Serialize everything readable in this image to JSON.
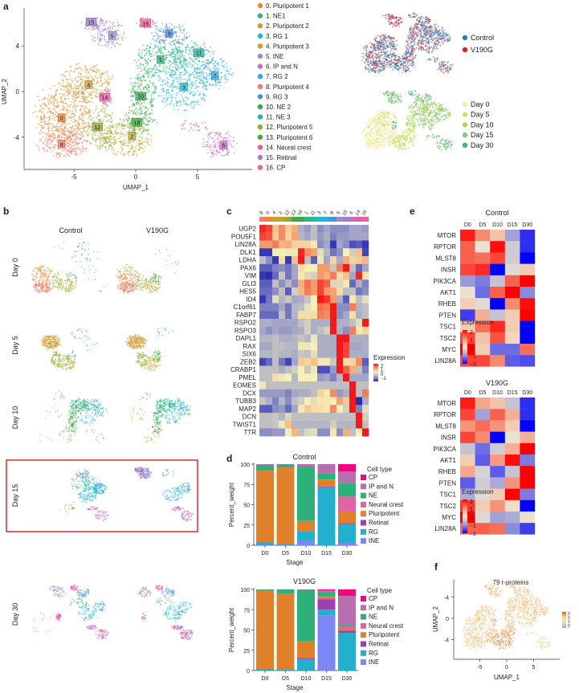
{
  "panels": {
    "a": "a",
    "b": "b",
    "c": "c",
    "d": "d",
    "e": "e",
    "f": "f"
  },
  "chart_data": [
    {
      "type": "scatter",
      "panel": "a",
      "xlabel": "UMAP_1",
      "ylabel": "UMAP_2",
      "xticks": [
        "-5",
        "0",
        "5"
      ],
      "yticks": [
        "4",
        "0",
        "-4"
      ],
      "clusters": [
        {
          "id": "0",
          "label": "0. Pluripotent 1",
          "color": "#e8872c"
        },
        {
          "id": "1",
          "label": "1. NE1",
          "color": "#2fb57a"
        },
        {
          "id": "2",
          "label": "2. Pluripotent 2",
          "color": "#b8a82e"
        },
        {
          "id": "3",
          "label": "3. RG 1",
          "color": "#1bbad6"
        },
        {
          "id": "4",
          "label": "4. Pluripotent 3",
          "color": "#d39a2c"
        },
        {
          "id": "5",
          "label": "5. tNE",
          "color": "#9d8ad2"
        },
        {
          "id": "6",
          "label": "6. IP and N",
          "color": "#c96fbf"
        },
        {
          "id": "7",
          "label": "7. RG 2",
          "color": "#2aa9e6"
        },
        {
          "id": "8",
          "label": "8. Pluripotent 4",
          "color": "#f27a6a"
        },
        {
          "id": "9",
          "label": "9. RG 3",
          "color": "#4a8fd8"
        },
        {
          "id": "10",
          "label": "10. NE 2",
          "color": "#2eae4c"
        },
        {
          "id": "11",
          "label": "11. NE 3",
          "color": "#22b8a6"
        },
        {
          "id": "12",
          "label": "12. Pluripotent 5",
          "color": "#8fae2a"
        },
        {
          "id": "13",
          "label": "13. Pluripotent 6",
          "color": "#3eae3c"
        },
        {
          "id": "14",
          "label": "14. Neural crest",
          "color": "#e85ba8"
        },
        {
          "id": "15",
          "label": "15. Retinal",
          "color": "#a27ad2"
        },
        {
          "id": "16",
          "label": "16. CP",
          "color": "#f0609a"
        }
      ]
    },
    {
      "type": "scatter",
      "panel": "a",
      "legend": [
        {
          "label": "Control",
          "color": "#2a7db8"
        },
        {
          "label": "V190G",
          "color": "#cf252d"
        }
      ]
    },
    {
      "type": "scatter",
      "panel": "a",
      "legend": [
        {
          "label": "Day 0",
          "color": "#f3ee9c"
        },
        {
          "label": "Day 5",
          "color": "#d6e36a"
        },
        {
          "label": "Day 10",
          "color": "#aad66a"
        },
        {
          "label": "Day 15",
          "color": "#86c978"
        },
        {
          "label": "Day 30",
          "color": "#4db36a"
        }
      ]
    },
    {
      "type": "scatter",
      "panel": "b",
      "columns": [
        "Control",
        "V190G"
      ],
      "rows": [
        "Day 0",
        "Day 5",
        "Day 10",
        "Day 15",
        "Day 30"
      ],
      "highlighted_row": "Day 15",
      "highlight_color": "#e8262b"
    },
    {
      "type": "heatmap",
      "panel": "c",
      "columns": [
        "8",
        "0",
        "4",
        "2",
        "12",
        "13",
        "10",
        "1",
        "11",
        "3",
        "7",
        "9",
        "5",
        "15",
        "6",
        "14",
        "16"
      ],
      "rows": [
        "UGP2",
        "POU5F1",
        "LIN28A",
        "DLK1",
        "LDHA",
        "PAX6",
        "VIM",
        "GLI3",
        "HES5",
        "ID4",
        "C1orf61",
        "FABP7",
        "RSPO2",
        "RSPO3",
        "DAPL1",
        "RAX",
        "SIX6",
        "ZEB2",
        "CRABP1",
        "PMEL",
        "EOMES",
        "DCX",
        "TUBB3",
        "MAP2",
        "DCN",
        "TWIST1",
        "TTR"
      ],
      "values": [
        [
          2,
          1.8,
          0.8,
          1.3,
          0.7,
          1,
          -0.5,
          -0.7,
          -0.3,
          -0.8,
          -0.6,
          -0.8,
          -0.8,
          -0.8,
          -0.6,
          -0.6,
          -0.7
        ],
        [
          1.8,
          1.7,
          0.7,
          1.3,
          0.6,
          1.1,
          -0.4,
          -0.6,
          -0.3,
          -0.7,
          -0.5,
          -0.9,
          -0.7,
          -0.7,
          -0.6,
          -0.6,
          -0.6
        ],
        [
          1.2,
          1.2,
          1.4,
          0.9,
          1,
          0.6,
          0.6,
          0.6,
          0.4,
          -0.8,
          -0.6,
          -1.5,
          -0.6,
          -0.8,
          -1.3,
          -1.2,
          -1.5
        ],
        [
          -1.5,
          -1.5,
          0.3,
          0.3,
          0.4,
          0.2,
          2,
          1.3,
          1.1,
          0.1,
          -0.4,
          -1,
          -0.8,
          0.3,
          -0.1,
          0.8,
          -1.4
        ],
        [
          -0.3,
          -0.8,
          -1.5,
          0.5,
          -1.5,
          0.8,
          2.2,
          -0.3,
          -1.2,
          0.2,
          -0.6,
          0.6,
          -0.5,
          1,
          0.6,
          0.7,
          0.9
        ],
        [
          -1.2,
          -1.2,
          -0.9,
          -0.8,
          -1,
          -0.6,
          0.5,
          0.3,
          0.3,
          1.2,
          1.2,
          -0.2,
          1.4,
          2.2,
          -0.3,
          -1.1,
          -0.6
        ],
        [
          -1.5,
          -1.8,
          -1.1,
          -0.2,
          -1,
          -0.6,
          0.4,
          0,
          -0.1,
          1.2,
          1,
          1.4,
          0.5,
          0.8,
          -0.6,
          2,
          0.4
        ],
        [
          -1.2,
          -1.2,
          -0.3,
          -0.8,
          -0.4,
          -0.8,
          1,
          1.5,
          1.2,
          1.8,
          1.6,
          0,
          0,
          0.4,
          -1.1,
          -0.5,
          -0.9
        ],
        [
          -1.1,
          -1.1,
          -0.8,
          -0.3,
          -1.2,
          -0.1,
          0.9,
          1.4,
          1.2,
          1.8,
          1.2,
          1.1,
          0.5,
          -0.3,
          -0.3,
          -1,
          -0.8
        ],
        [
          -1.5,
          -1,
          0.1,
          -0.4,
          -0.2,
          -0.6,
          -0.5,
          -0.2,
          0.3,
          2.1,
          1.9,
          1.2,
          -0.5,
          -1.2,
          0.4,
          -0.3,
          0.1
        ],
        [
          -0.9,
          -0.9,
          -0.9,
          -0.6,
          -1,
          -0.4,
          -0.3,
          0.1,
          0.3,
          1.5,
          1.4,
          2.4,
          -0.8,
          -0.8,
          1.4,
          -0.4,
          -0.3
        ],
        [
          -1.1,
          -1.1,
          -1.1,
          -0.3,
          -1,
          -0.4,
          0.5,
          0.5,
          0.5,
          1.4,
          1.3,
          2.4,
          -0.8,
          -0.6,
          0.5,
          -0.5,
          -0.3
        ],
        [
          -0.5,
          -0.5,
          -0.6,
          -0.6,
          -0.6,
          -0.6,
          -0.3,
          -0.1,
          -0.5,
          -0.5,
          -0.5,
          2.4,
          -0.5,
          -0.5,
          -0.3,
          0.1,
          2.3
        ],
        [
          -0.6,
          -0.8,
          -0.6,
          -0.7,
          -0.7,
          -0.6,
          -0.5,
          -0.1,
          -0.5,
          -0.3,
          -0.1,
          2.4,
          -0.5,
          -0.8,
          1.4,
          0.4,
          0.6
        ],
        [
          -0.4,
          -0.4,
          -0.3,
          -0.5,
          -0.5,
          -0.4,
          -0.2,
          -0.4,
          0.2,
          -0.5,
          -0.5,
          -0.5,
          2.4,
          2.4,
          -0.5,
          -0.5,
          -0.5
        ],
        [
          -0.6,
          -0.6,
          -0.3,
          -0.3,
          -0.4,
          -0.4,
          0.4,
          0.2,
          0.3,
          -0.5,
          -0.5,
          -0.5,
          2.4,
          1.8,
          -0.6,
          -0.6,
          -0.5
        ],
        [
          -0.4,
          -0.4,
          -0.3,
          -0.4,
          -0.4,
          -0.5,
          -0.2,
          -0.3,
          0.1,
          -0.5,
          -0.5,
          -0.5,
          2.4,
          1.8,
          -0.5,
          -0.5,
          -0.5
        ],
        [
          -1.4,
          -1.1,
          -0.3,
          -1,
          -1.4,
          -0.6,
          0.7,
          0.6,
          0.8,
          0.4,
          0.4,
          -0.2,
          2.4,
          0.5,
          0.6,
          1.3,
          -1.2
        ],
        [
          -0.3,
          -0.3,
          -0.3,
          -0.5,
          -0.3,
          -0.1,
          0.3,
          -0.2,
          0.2,
          -1.3,
          -1.3,
          -0.7,
          2.4,
          1.6,
          1,
          -0.3,
          -0.9
        ],
        [
          -0.3,
          -0.3,
          0.5,
          0.2,
          0.3,
          -0.4,
          0.3,
          0.3,
          0.3,
          -0.7,
          -0.6,
          -0.9,
          -0.4,
          2.4,
          -0.6,
          -0.6,
          -0.6
        ],
        [
          0.2,
          -0.3,
          -0.3,
          -0.3,
          -0.3,
          -0.3,
          -0.3,
          -0.3,
          -0.3,
          -0.3,
          -0.3,
          -0.3,
          -0.3,
          -0.3,
          2.4,
          -0.3,
          -0.3
        ],
        [
          -0.7,
          -0.7,
          -0.7,
          -0.7,
          -0.9,
          -0.6,
          -0.5,
          -0.5,
          -0.3,
          0.6,
          0.4,
          1.3,
          -0.7,
          -0.5,
          2.4,
          -0.3,
          1.4
        ],
        [
          -0.2,
          -0.5,
          -0.9,
          -0.4,
          -0.8,
          -0.3,
          -0.1,
          0.3,
          0.1,
          0.4,
          0.4,
          0.3,
          1.1,
          0.7,
          2.4,
          -1.8,
          -0.5
        ],
        [
          -1.2,
          -1.2,
          -0.8,
          -0.7,
          -1.1,
          -0.6,
          0.4,
          0.7,
          0.5,
          0.5,
          0.4,
          1.3,
          0.3,
          -0.1,
          2.4,
          -0.9,
          0.1
        ],
        [
          -0.3,
          -0.3,
          -0.2,
          -0.4,
          0,
          -0.3,
          -0.3,
          -0.3,
          -0.3,
          -0.3,
          -0.3,
          -0.3,
          -0.3,
          -0.3,
          -0.3,
          2.4,
          -0.1
        ],
        [
          -0.3,
          -0.3,
          -0.2,
          0.2,
          0.8,
          -0.4,
          -0.4,
          -0.4,
          -0.4,
          -0.4,
          -0.4,
          -0.1,
          -0.4,
          -0.4,
          -0.4,
          2.4,
          -0.3
        ],
        [
          -0.8,
          -0.8,
          -0.7,
          -0.7,
          0.3,
          0.9,
          -0.3,
          0,
          0.1,
          -0.8,
          -0.8,
          0.4,
          -0.8,
          1,
          -0.3,
          0.3,
          2.4
        ]
      ],
      "legend_title": "Expression",
      "legend_ticks": [
        "2",
        "1",
        "0",
        "−1"
      ]
    },
    {
      "type": "bar",
      "stacked": true,
      "panel": "d",
      "title": "Control",
      "categories": [
        "D0",
        "D5",
        "D10",
        "D15",
        "D30"
      ],
      "xlabel": "Stage",
      "ylabel": "Percent_weight",
      "yticks": [
        "0",
        "25",
        "50",
        "75",
        "100"
      ],
      "ylim": [
        0,
        100
      ],
      "legend_title": "Cell type",
      "series": [
        {
          "name": "CP",
          "color": "#f2077f",
          "values": [
            0,
            0,
            0,
            0,
            9
          ]
        },
        {
          "name": "IP and N",
          "color": "#b86fb0",
          "values": [
            1,
            0.5,
            3,
            11,
            14
          ]
        },
        {
          "name": "NE",
          "color": "#2eb07a",
          "values": [
            7,
            3.5,
            67,
            8,
            17
          ]
        },
        {
          "name": "Neural crest",
          "color": "#e063a6",
          "values": [
            0,
            0,
            0,
            0.5,
            18.5
          ]
        },
        {
          "name": "Pluripotent",
          "color": "#e0802b",
          "values": [
            88,
            94.5,
            12.5,
            8,
            14
          ]
        },
        {
          "name": "Retinal",
          "color": "#9d3fb5",
          "values": [
            0,
            0,
            0.5,
            1,
            1.5
          ]
        },
        {
          "name": "RG",
          "color": "#22b0cc",
          "values": [
            3.5,
            1,
            12,
            71.5,
            23
          ]
        },
        {
          "name": "tNE",
          "color": "#7a87f5",
          "values": [
            0.5,
            0.5,
            5,
            0,
            3
          ]
        }
      ]
    },
    {
      "type": "bar",
      "stacked": true,
      "panel": "d",
      "title": "V190G",
      "categories": [
        "D0",
        "D5",
        "D10",
        "D15",
        "D30"
      ],
      "xlabel": "Stage",
      "ylabel": "Percent_weight",
      "yticks": [
        "0",
        "25",
        "50",
        "75",
        "100"
      ],
      "ylim": [
        0,
        100
      ],
      "legend_title": "Cell type",
      "series": [
        {
          "name": "CP",
          "color": "#f2077f",
          "values": [
            0,
            0,
            0,
            1,
            8
          ]
        },
        {
          "name": "IP and N",
          "color": "#b86fb0",
          "values": [
            0,
            0,
            0.5,
            2,
            35
          ]
        },
        {
          "name": "NE",
          "color": "#2eb07a",
          "values": [
            1,
            5,
            63.5,
            5.5,
            2
          ]
        },
        {
          "name": "Neural crest",
          "color": "#e063a6",
          "values": [
            0,
            0,
            0,
            0.5,
            3.5
          ]
        },
        {
          "name": "Pluripotent",
          "color": "#e0802b",
          "values": [
            97,
            94,
            20.5,
            3,
            2.5
          ]
        },
        {
          "name": "Retinal",
          "color": "#9d3fb5",
          "values": [
            0,
            0,
            1.5,
            13,
            2.5
          ]
        },
        {
          "name": "RG",
          "color": "#22b0cc",
          "values": [
            2,
            1,
            14,
            7,
            46.5
          ]
        },
        {
          "name": "tNE",
          "color": "#7a87f5",
          "values": [
            0,
            0,
            0,
            68,
            0
          ]
        }
      ]
    },
    {
      "type": "heatmap",
      "panel": "e",
      "title": "Control",
      "columns": [
        "D0",
        "D5",
        "D10",
        "D15",
        "D30"
      ],
      "rows": [
        "MTOR",
        "RPTOR",
        "MLST8",
        "INSR",
        "PIK3CA",
        "AKT1",
        "RHEB",
        "PTEN",
        "TSC1",
        "TSC2",
        "MYC",
        "LIN28A"
      ],
      "values": [
        [
          1.8,
          1,
          0.4,
          -0.9,
          -1.7
        ],
        [
          1.3,
          -0.1,
          1.9,
          -0.4,
          -1.7
        ],
        [
          1.3,
          1.2,
          1.5,
          -0.4,
          -2
        ],
        [
          1.5,
          1.7,
          -2,
          -0.2,
          0.3
        ],
        [
          -1,
          -1.2,
          -0.5,
          1.3,
          2
        ],
        [
          -0.1,
          -1.3,
          1.3,
          2,
          -1.1
        ],
        [
          0.3,
          -0.2,
          -2,
          1,
          1.9
        ],
        [
          -1.6,
          0.6,
          -0.5,
          0.3,
          2
        ],
        [
          0.3,
          1.2,
          1.7,
          0.3,
          -2
        ],
        [
          1.5,
          0.4,
          1.4,
          0.2,
          -2
        ],
        [
          2,
          0.3,
          -1.3,
          -1.3,
          1.2
        ],
        [
          1.5,
          1.5,
          1,
          -1.4,
          -1.5
        ]
      ],
      "legend_title": "Expression",
      "legend_ticks": [
        "2",
        "1",
        "0",
        "−1",
        "−2"
      ]
    },
    {
      "type": "heatmap",
      "panel": "e",
      "title": "V190G",
      "columns": [
        "D0",
        "D5",
        "D10",
        "D15",
        "D30"
      ],
      "rows": [
        "MTOR",
        "RPTOR",
        "MLST8",
        "INSR",
        "PIK3CA",
        "AKT1",
        "RHEB",
        "PTEN",
        "TSC1",
        "TSC2",
        "MYC",
        "LIN28A"
      ],
      "values": [
        [
          1.8,
          0.7,
          0.4,
          -0.5,
          -1.7
        ],
        [
          1.5,
          -0.9,
          1.3,
          0.6,
          -1.7
        ],
        [
          0.9,
          1.2,
          0.9,
          0.3,
          -2
        ],
        [
          1.5,
          1,
          -2,
          -0.1,
          0.6
        ],
        [
          -0.5,
          -1.3,
          -0.4,
          0.6,
          2
        ],
        [
          0.3,
          -1.4,
          0.8,
          1.9,
          -1.2
        ],
        [
          0.7,
          -0.3,
          -1.4,
          -0.5,
          2
        ],
        [
          -1.4,
          -0.4,
          -0.8,
          0.9,
          2
        ],
        [
          -0.8,
          -0.2,
          0.3,
          2,
          -1.2
        ],
        [
          1.6,
          0.3,
          0.9,
          0.1,
          -2
        ],
        [
          2,
          -0.2,
          -0.9,
          -0.8,
          -0.1
        ],
        [
          1.3,
          1.3,
          1.2,
          -1.1,
          -1.6
        ]
      ],
      "legend_title": "Expression",
      "legend_ticks": [
        "2",
        "1",
        "0",
        "−1",
        "−2"
      ]
    },
    {
      "type": "scatter",
      "panel": "f",
      "title": "79 r-proteins",
      "xlabel": "UMAP_1",
      "ylabel": "UMAP_2",
      "xticks": [
        "-5",
        "0",
        "5"
      ],
      "yticks": [
        "-4",
        "0",
        "-4"
      ],
      "colorbar_ticks": [
        "3",
        "2",
        "1",
        "0"
      ]
    }
  ]
}
